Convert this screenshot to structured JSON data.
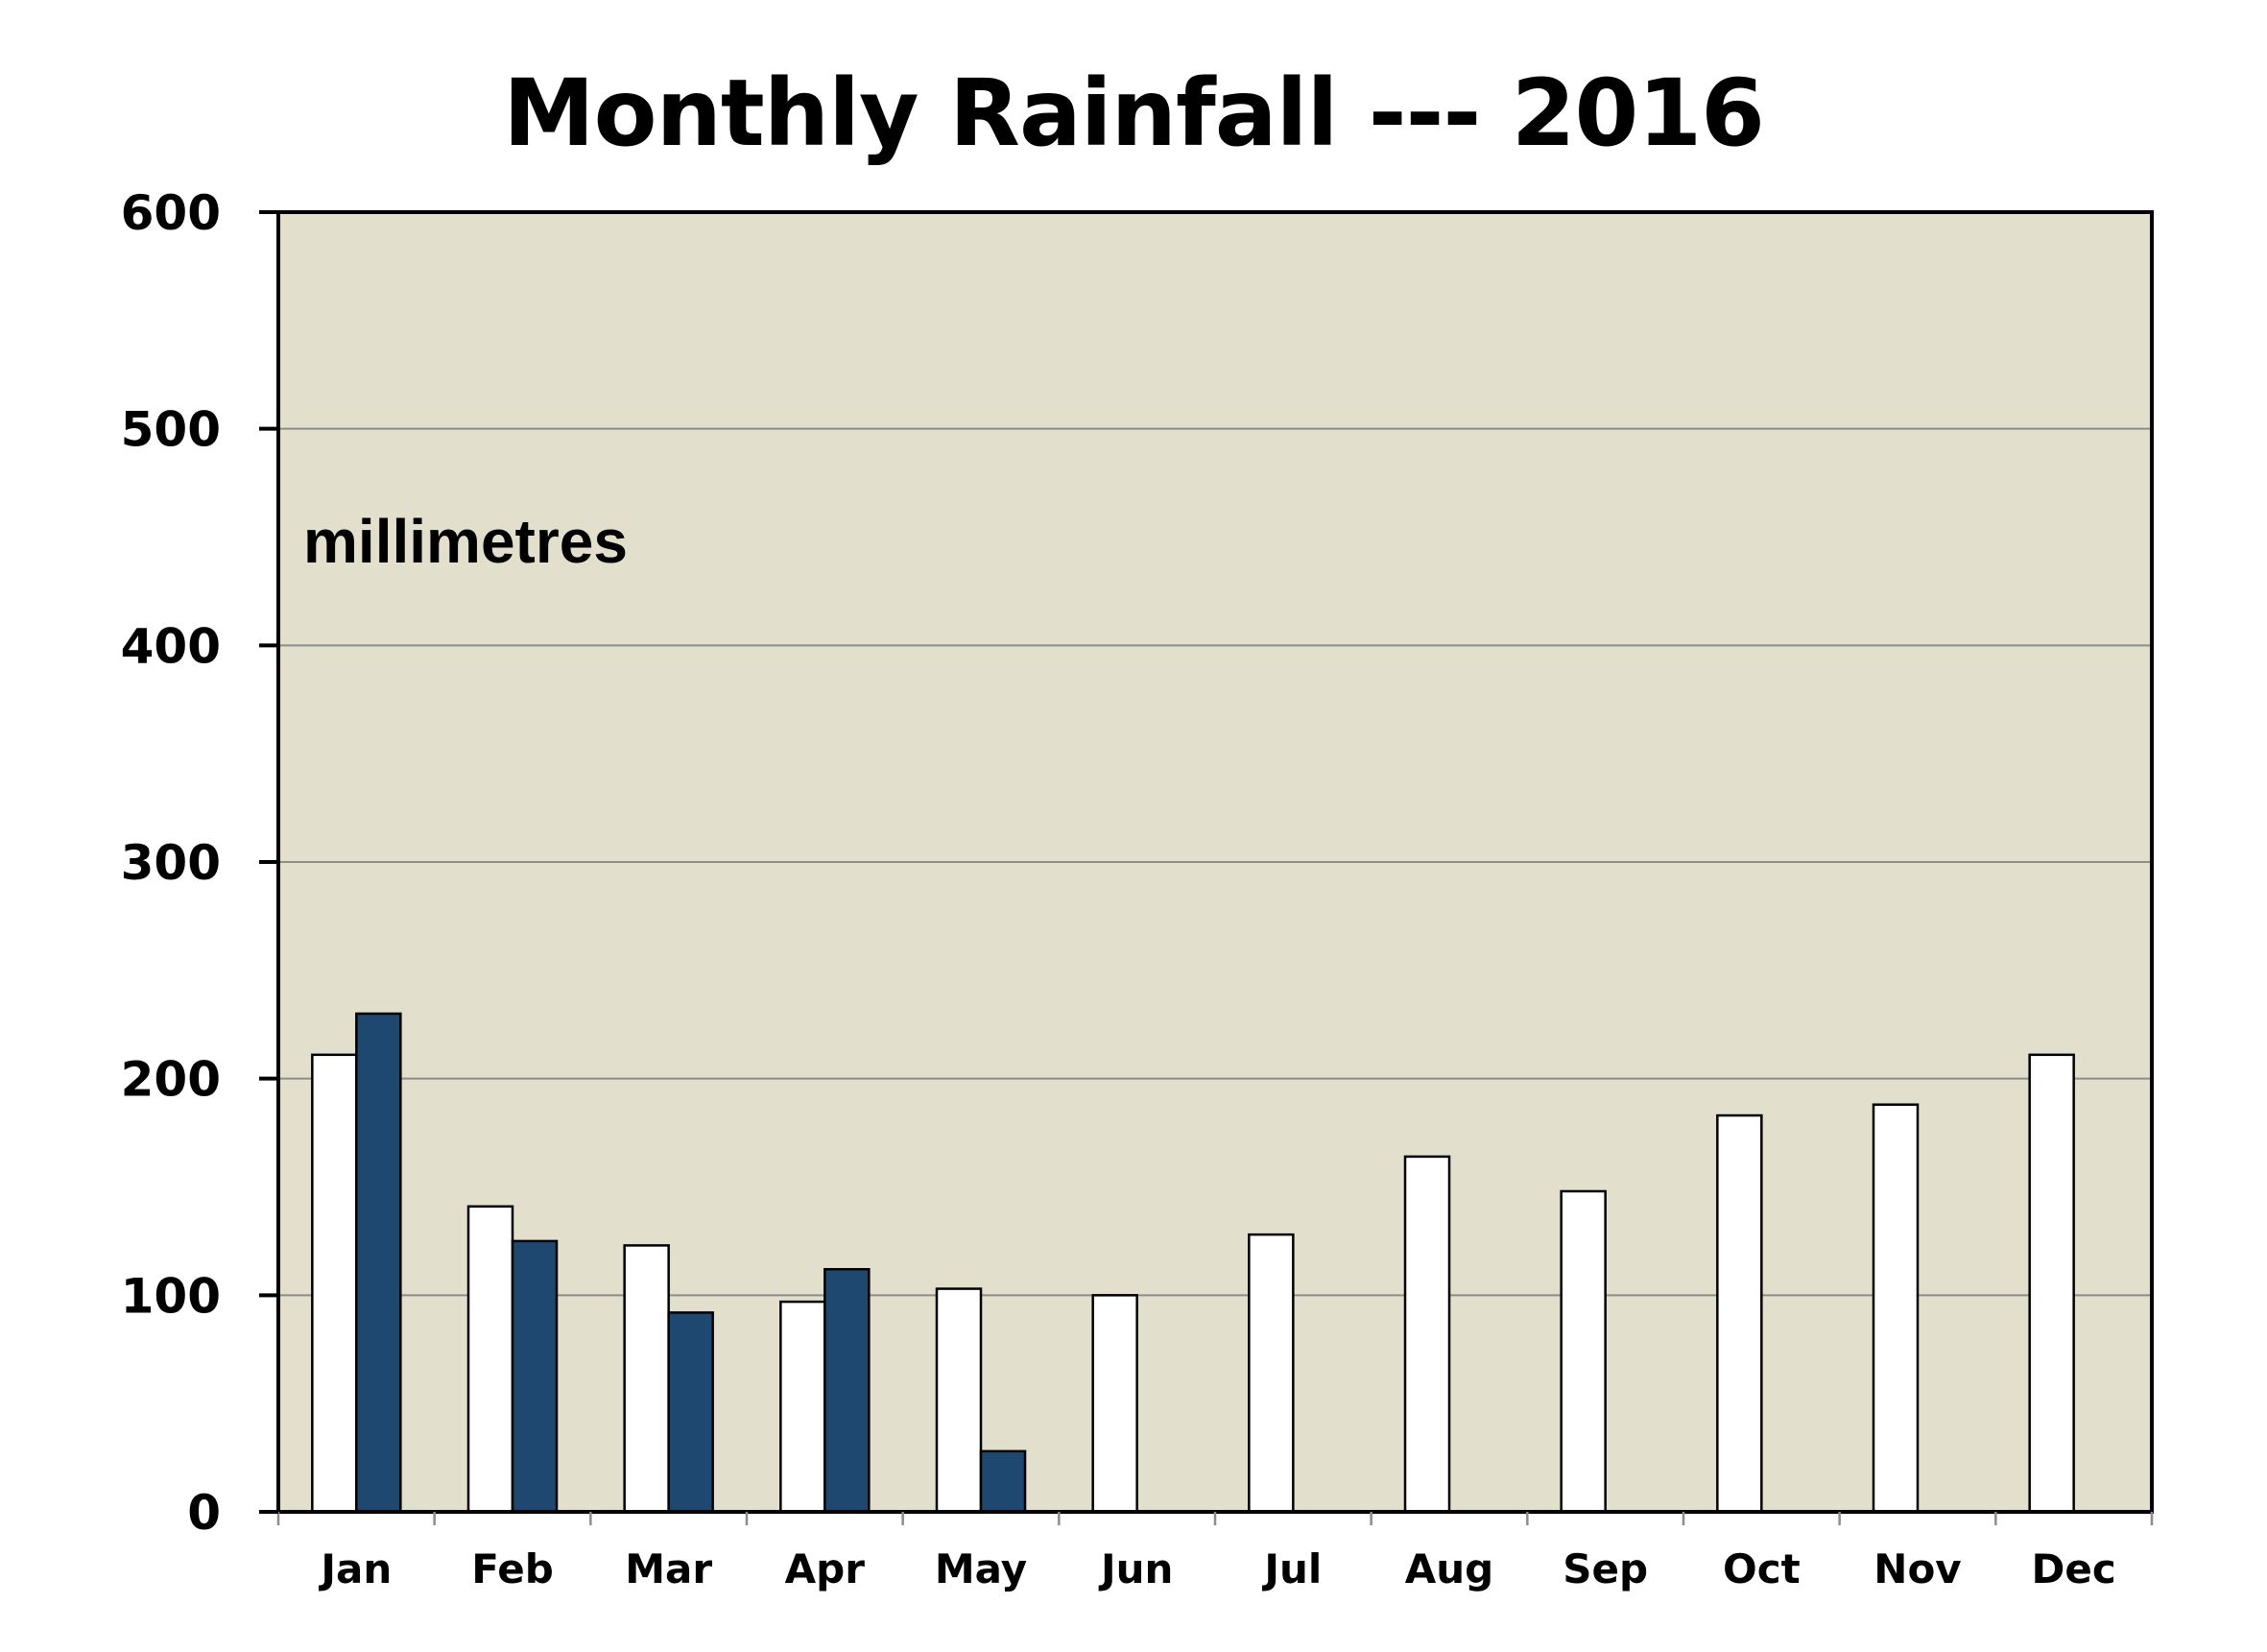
{
  "chart_data": {
    "type": "bar",
    "title": "Monthly Rainfall --- 2016",
    "unit_label": "millimetres",
    "xlabel": "",
    "ylabel": "",
    "ylim": [
      0,
      600
    ],
    "yticks": [
      0,
      100,
      200,
      300,
      400,
      500,
      600
    ],
    "categories": [
      "Jan",
      "Feb",
      "Mar",
      "Apr",
      "May",
      "Jun",
      "Jul",
      "Aug",
      "Sep",
      "Oct",
      "Nov",
      "Dec"
    ],
    "series": [
      {
        "color": "#ffffff",
        "values": [
          211,
          141,
          123,
          97,
          103,
          100,
          128,
          164,
          148,
          183,
          188,
          211
        ]
      },
      {
        "color": "#1f4871",
        "values": [
          230,
          125,
          92,
          112,
          28,
          null,
          null,
          null,
          null,
          null,
          null,
          null
        ]
      }
    ],
    "grid": true,
    "legend": "none",
    "plot_background": "#e2dfcc",
    "gridline_color": "#8c8c8c"
  }
}
